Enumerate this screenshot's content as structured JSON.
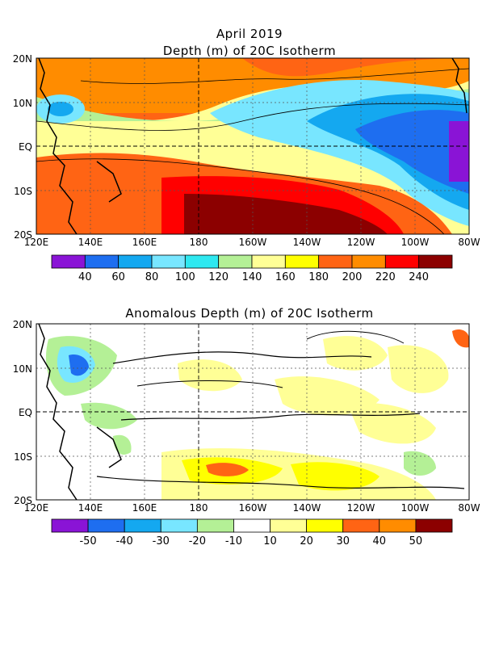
{
  "panel1": {
    "title_line1": "April 2019",
    "title_line2": "Depth (m) of 20C Isotherm",
    "x_ticks": [
      "120E",
      "140E",
      "160E",
      "180",
      "160W",
      "140W",
      "120W",
      "100W",
      "80W"
    ],
    "y_ticks": [
      "20N",
      "10N",
      "EQ",
      "10S",
      "20S"
    ],
    "colorbar": {
      "colors": [
        "#8a14d6",
        "#1e6ef0",
        "#14a8f0",
        "#78e6ff",
        "#2ee8f0",
        "#b4f096",
        "#ffff96",
        "#ffff00",
        "#ff6414",
        "#ff8c00",
        "#ff0000",
        "#8c0000"
      ],
      "labels": [
        "40",
        "60",
        "80",
        "100",
        "120",
        "140",
        "160",
        "180",
        "200",
        "220",
        "240"
      ]
    }
  },
  "panel2": {
    "title": "Anomalous Depth (m) of 20C Isotherm",
    "x_ticks": [
      "120E",
      "140E",
      "160E",
      "180",
      "160W",
      "140W",
      "120W",
      "100W",
      "80W"
    ],
    "y_ticks": [
      "20N",
      "10N",
      "EQ",
      "10S",
      "20S"
    ],
    "colorbar": {
      "colors": [
        "#8a14d6",
        "#1e6ef0",
        "#14a8f0",
        "#78e6ff",
        "#b4f096",
        "#ffffff",
        "#ffff96",
        "#ffff00",
        "#ff6414",
        "#ff8c00",
        "#8c0000"
      ],
      "labels": [
        "-50",
        "-40",
        "-30",
        "-20",
        "-10",
        "10",
        "20",
        "30",
        "40",
        "50"
      ]
    }
  }
}
